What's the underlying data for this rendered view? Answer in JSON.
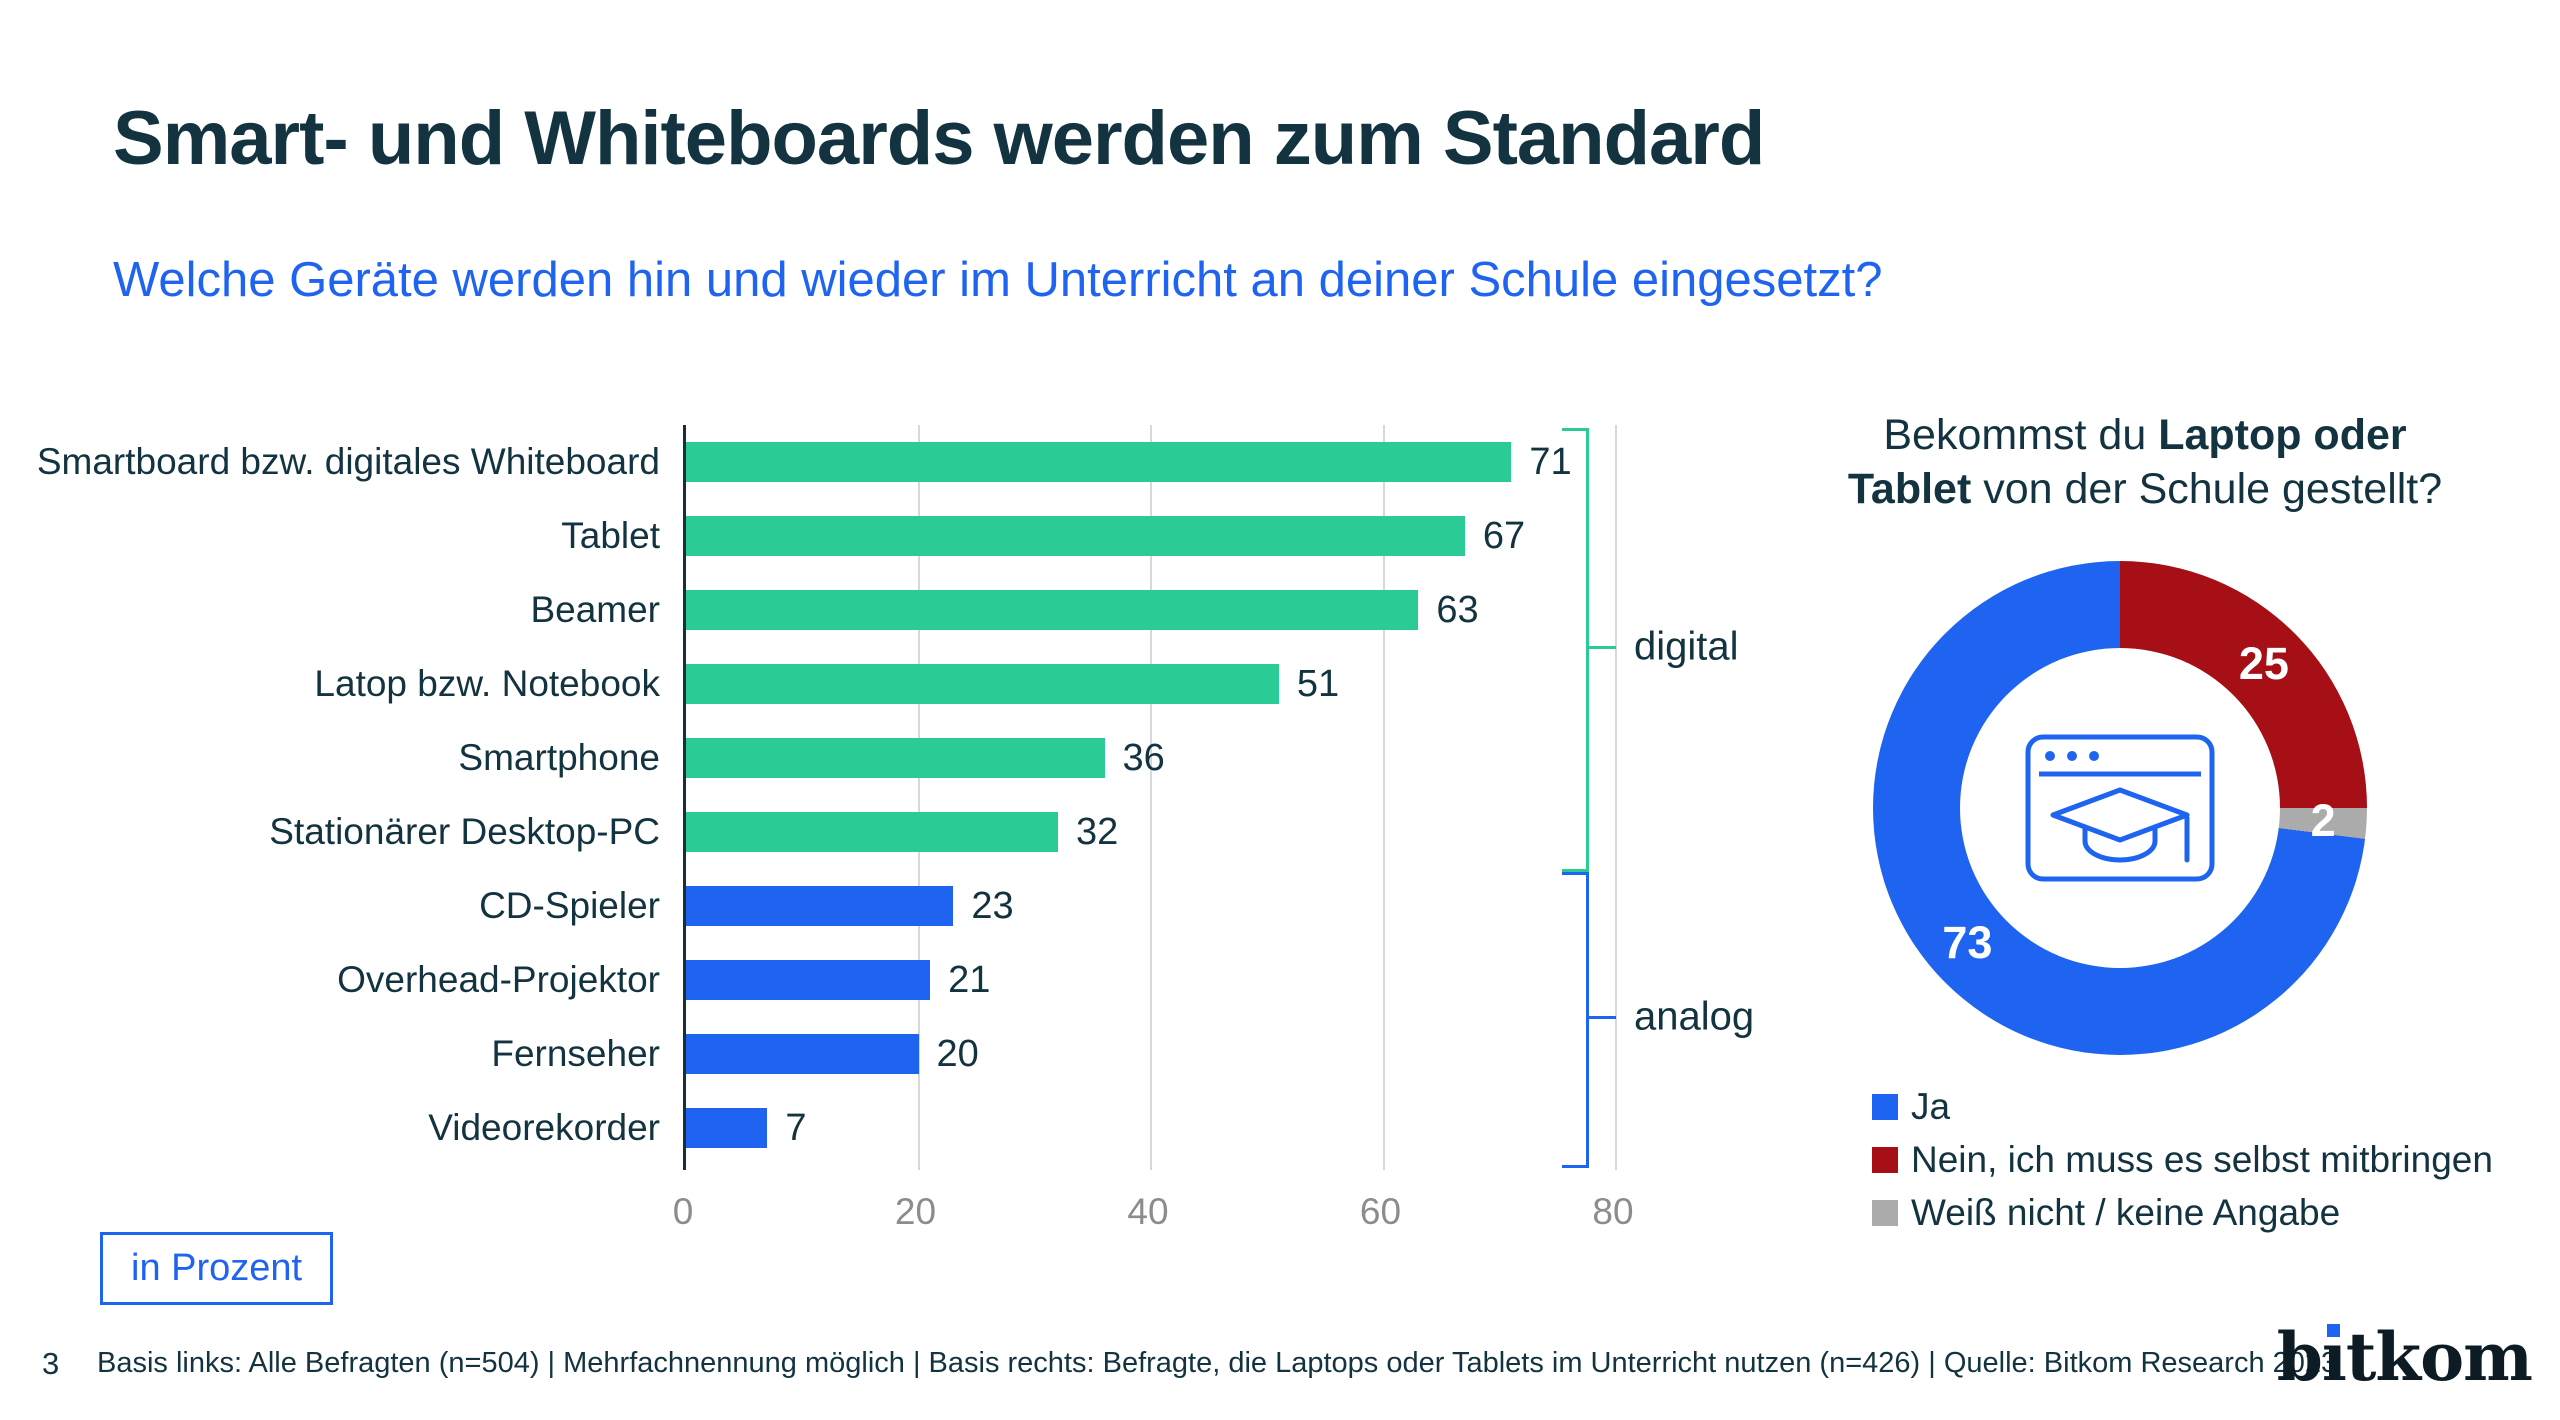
{
  "header": {
    "title": "Smart- und Whiteboards werden zum Standard",
    "subtitle": "Welche Geräte werden hin und wieder im Unterricht an deiner Schule eingesetzt?"
  },
  "unit_box": {
    "label": "in Prozent"
  },
  "footer": {
    "page_number": "3",
    "source_note": "Basis links: Alle Befragten (n=504) | Mehrfachnennung möglich | Basis rechts: Befragte, die Laptops oder Tablets im Unterricht nutzen (n=426) | Quelle: Bitkom Research 2023",
    "logo_text": "bitkom",
    "logo_parts": {
      "b": "b",
      "i_dotless": "ı",
      "rest": "tkom"
    }
  },
  "colors": {
    "title_dark": "#12333F",
    "accent_blue": "#1F64F0",
    "bar_green": "#2BCB95",
    "bar_blue": "#1F64F0",
    "donut_red": "#A50F15",
    "donut_gray": "#ABABAB",
    "gridline_gray": "#D8D8D8",
    "tick_gray": "#8C8C8C"
  },
  "chart_data": [
    {
      "type": "bar",
      "orientation": "horizontal",
      "unit": "percent",
      "title": "Welche Geräte werden hin und wieder im Unterricht an deiner Schule eingesetzt?",
      "xlim": [
        0,
        80
      ],
      "x_ticks": [
        0,
        20,
        40,
        60,
        80
      ],
      "grid": true,
      "categories": [
        "Smartboard bzw. digitales Whiteboard",
        "Tablet",
        "Beamer",
        "Latop bzw. Notebook",
        "Smartphone",
        "Stationärer Desktop-PC",
        "CD-Spieler",
        "Overhead-Projektor",
        "Fernseher",
        "Videorekorder"
      ],
      "values": [
        71,
        67,
        63,
        51,
        36,
        32,
        23,
        21,
        20,
        7
      ],
      "groups": [
        {
          "label": "digital",
          "color": "#2BCB95",
          "from_index": 0,
          "to_index": 5
        },
        {
          "label": "analog",
          "color": "#1F64F0",
          "from_index": 6,
          "to_index": 9
        }
      ]
    },
    {
      "type": "donut",
      "title": {
        "l1_regular": "Bekommst du ",
        "l1_bold": "Laptop oder",
        "l2_bold": "Tablet",
        "l2_regular": " von der Schule gestellt?"
      },
      "segments": [
        {
          "label": "Ja",
          "value": 73,
          "color": "#1F64F0"
        },
        {
          "label": "Nein, ich muss es selbst mitbringen",
          "value": 25,
          "color": "#A50F15"
        },
        {
          "label": "Weiß nicht / keine Angabe",
          "value": 2,
          "color": "#ABABAB"
        }
      ],
      "draw_from_top_clockwise": [
        "Nein, ich muss es selbst mitbringen",
        "Weiß nicht / keine Angabe",
        "Ja"
      ],
      "center_icon": "browser-window-graduation-cap-icon",
      "legend_position": "bottom-left"
    }
  ]
}
